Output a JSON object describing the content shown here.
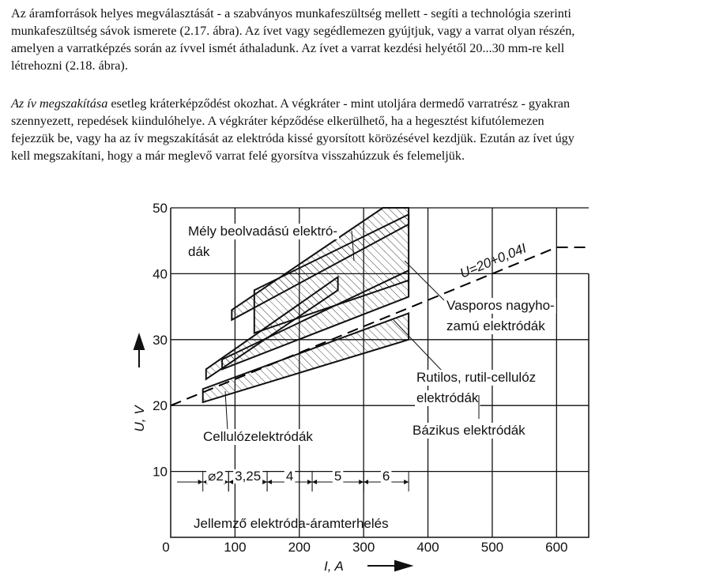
{
  "paragraphs": [
    {
      "lines": [
        "Az áramforrások helyes megválasztását - a szabványos munkafeszültség mellett - segíti a technológia szerinti",
        "munkafeszültség sávok ismerete (2.17. ábra). Az ívet vagy segédlemezen gyújtjuk, vagy a varrat olyan részén,",
        "amelyen a varratképzés során az ívvel ismét áthaladunk. Az ívet a varrat kezdési helyétől 20...30 mm-re kell",
        "létrehozni (2.18. ábra)."
      ]
    },
    {
      "emphasis": "Az ív megszakítása",
      "lines": [
        " esetleg kráterképződést okozhat. A végkráter - mint utoljára dermedő varratrész - gyakran",
        "szennyezett, repedések kiindulóhelye. A végkráter képződése elkerülhető, ha a hegesztést kifutólemezen",
        "fejezzük be, vagy ha az ív megszakítását az elektróda kissé gyorsított körözésével kezdjük. Ezután az ívet úgy",
        "kell megszakítani, hogy a már meglevő varrat felé gyorsítva visszahúzzuk és felemeljük."
      ]
    }
  ],
  "chart_data": {
    "type": "line",
    "x_label": "I, A",
    "y_label": "U, V",
    "xlim": [
      0,
      650
    ],
    "ylim": [
      0,
      50
    ],
    "xticks": [
      0,
      100,
      200,
      300,
      400,
      500,
      600
    ],
    "yticks": [
      10,
      20,
      30,
      40,
      50
    ],
    "grid": true,
    "series": [
      {
        "name": "U=20+0,04I",
        "color": "#000000",
        "x": [
          0,
          370,
          600,
          650
        ],
        "values": [
          20,
          34.8,
          44,
          44
        ]
      }
    ],
    "regions": [
      {
        "label": [
          "Mély beolvadású elektró-",
          "dák"
        ],
        "x": [
          95,
          95,
          330,
          370,
          370
        ],
        "values": [
          33,
          34.5,
          50,
          50,
          47.5
        ]
      },
      {
        "label": [
          "Vasporos nagyho-",
          "zamú elektródák"
        ],
        "x": [
          130,
          370,
          370,
          130
        ],
        "values": [
          31,
          39,
          49,
          37.5
        ]
      },
      {
        "label": [
          "Rutilos, rutil-cellulóz",
          "elektródák"
        ],
        "x": [
          80,
          370,
          370,
          80
        ],
        "values": [
          25.5,
          36.5,
          40.5,
          27
        ]
      },
      {
        "label": [
          "Cellulózelektródák"
        ],
        "x": [
          55,
          260,
          260,
          55
        ],
        "values": [
          24,
          37.5,
          39.5,
          25.5
        ]
      },
      {
        "label": [
          "Bázikus elektródák"
        ],
        "x": [
          50,
          370,
          370,
          50
        ],
        "values": [
          20.5,
          30,
          34,
          22.5
        ]
      }
    ],
    "ranges": [
      {
        "label": "⌀2",
        "from": 50,
        "to": 90
      },
      {
        "label": "3,25",
        "from": 90,
        "to": 150
      },
      {
        "label": "4",
        "from": 150,
        "to": 220
      },
      {
        "label": "5",
        "from": 220,
        "to": 300
      },
      {
        "label": "6",
        "from": 300,
        "to": 370
      }
    ],
    "ranges_caption": "Jellemző elektróda-áramterhelés"
  }
}
